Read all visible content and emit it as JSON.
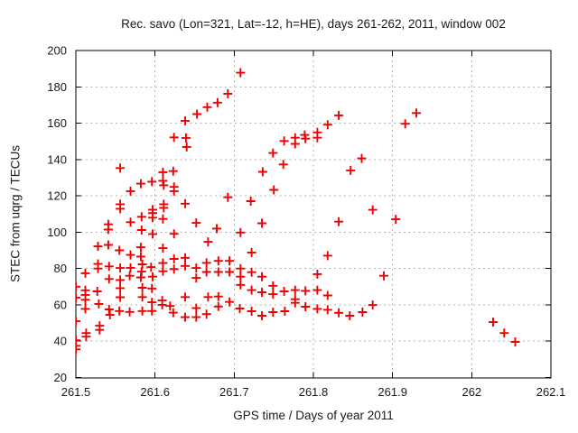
{
  "page": {
    "background": "#ffffff"
  },
  "chart_data": {
    "type": "scatter",
    "title": "Rec. savo (Lon=321, Lat=-12, h=HE), days 261-262, 2011, window 002",
    "xlabel": "GPS time / Days of year 2011",
    "ylabel": "STEC from uqrg / TECUs",
    "xlim": [
      261.5,
      262.1
    ],
    "ylim": [
      20,
      200
    ],
    "xticks": {
      "values": [
        261.5,
        261.6,
        261.7,
        261.8,
        261.9,
        262.0,
        262.1
      ],
      "labels": [
        "261.5",
        "261.6",
        "261.7",
        "261.8",
        "261.9",
        "262",
        "262.1"
      ]
    },
    "yticks": {
      "values": [
        20,
        40,
        60,
        80,
        100,
        120,
        140,
        160,
        180,
        200
      ],
      "labels": [
        "20",
        "40",
        "60",
        "80",
        "100",
        "120",
        "140",
        "160",
        "180",
        "200"
      ]
    },
    "grid": true,
    "legend_position": "none",
    "marker": {
      "shape": "plus",
      "color": "#ee0000",
      "size": 11
    },
    "axis_color": "#000000",
    "grid_color": "#b3b3b3",
    "series": [
      {
        "name": "STEC",
        "points": [
          [
            261.5,
            70.0
          ],
          [
            261.5,
            64.0
          ],
          [
            261.5,
            51.0
          ],
          [
            261.5,
            40.5
          ],
          [
            261.5,
            37.5
          ],
          [
            261.5,
            35.5
          ],
          [
            261.512,
            77.4
          ],
          [
            261.512,
            68.0
          ],
          [
            261.512,
            65.5
          ],
          [
            261.512,
            62.8
          ],
          [
            261.512,
            57.8
          ],
          [
            261.513,
            44.5
          ],
          [
            261.513,
            42.5
          ],
          [
            261.528,
            92.2
          ],
          [
            261.528,
            82.5
          ],
          [
            261.528,
            80.0
          ],
          [
            261.527,
            67.4
          ],
          [
            261.529,
            60.5
          ],
          [
            261.53,
            48.5
          ],
          [
            261.53,
            46.2
          ],
          [
            261.541,
            104.3
          ],
          [
            261.541,
            101.5
          ],
          [
            261.541,
            93.0
          ],
          [
            261.542,
            81.2
          ],
          [
            261.542,
            74.2
          ],
          [
            261.542,
            57.5
          ],
          [
            261.543,
            54.5
          ],
          [
            261.556,
            135.3
          ],
          [
            261.556,
            115.4
          ],
          [
            261.556,
            112.9
          ],
          [
            261.555,
            90.0
          ],
          [
            261.556,
            80.3
          ],
          [
            261.556,
            73.7
          ],
          [
            261.556,
            69.2
          ],
          [
            261.556,
            64.2
          ],
          [
            261.555,
            56.6
          ],
          [
            261.569,
            122.6
          ],
          [
            261.569,
            105.5
          ],
          [
            261.569,
            87.5
          ],
          [
            261.569,
            80.4
          ],
          [
            261.568,
            76.0
          ],
          [
            261.568,
            56.1
          ],
          [
            261.582,
            126.7
          ],
          [
            261.583,
            108.5
          ],
          [
            261.583,
            101.2
          ],
          [
            261.582,
            91.7
          ],
          [
            261.582,
            86.6
          ],
          [
            261.584,
            82.3
          ],
          [
            261.583,
            78.3
          ],
          [
            261.582,
            75.1
          ],
          [
            261.584,
            69.4
          ],
          [
            261.584,
            64.3
          ],
          [
            261.584,
            56.6
          ],
          [
            261.596,
            127.8
          ],
          [
            261.597,
            112.4
          ],
          [
            261.597,
            110.5
          ],
          [
            261.597,
            108.0
          ],
          [
            261.597,
            99.0
          ],
          [
            261.595,
            80.8
          ],
          [
            261.597,
            75.5
          ],
          [
            261.596,
            69.0
          ],
          [
            261.596,
            61.4
          ],
          [
            261.596,
            56.6
          ],
          [
            261.61,
            133.0
          ],
          [
            261.61,
            128.3
          ],
          [
            261.611,
            125.8
          ],
          [
            261.611,
            115.4
          ],
          [
            261.611,
            113.4
          ],
          [
            261.61,
            107.3
          ],
          [
            261.61,
            91.2
          ],
          [
            261.61,
            83.0
          ],
          [
            261.61,
            78.5
          ],
          [
            261.609,
            62.4
          ],
          [
            261.609,
            60.0
          ],
          [
            261.619,
            59.4
          ],
          [
            261.624,
            152.2
          ],
          [
            261.623,
            133.6
          ],
          [
            261.624,
            124.9
          ],
          [
            261.624,
            122.6
          ],
          [
            261.624,
            99.1
          ],
          [
            261.624,
            85.3
          ],
          [
            261.624,
            79.7
          ],
          [
            261.623,
            55.7
          ],
          [
            261.638,
            161.3
          ],
          [
            261.639,
            151.9
          ],
          [
            261.64,
            146.9
          ],
          [
            261.638,
            115.7
          ],
          [
            261.638,
            85.9
          ],
          [
            261.638,
            81.4
          ],
          [
            261.638,
            64.3
          ],
          [
            261.638,
            53.2
          ],
          [
            261.653,
            165.0
          ],
          [
            261.652,
            105.1
          ],
          [
            261.652,
            80.3
          ],
          [
            261.652,
            74.8
          ],
          [
            261.652,
            58.2
          ],
          [
            261.652,
            53.2
          ],
          [
            261.666,
            168.8
          ],
          [
            261.667,
            94.7
          ],
          [
            261.665,
            83.1
          ],
          [
            261.665,
            78.1
          ],
          [
            261.667,
            64.3
          ],
          [
            261.665,
            54.9
          ],
          [
            261.679,
            171.3
          ],
          [
            261.678,
            102.0
          ],
          [
            261.68,
            84.2
          ],
          [
            261.68,
            78.1
          ],
          [
            261.68,
            64.6
          ],
          [
            261.68,
            59.1
          ],
          [
            261.692,
            176.2
          ],
          [
            261.692,
            119.2
          ],
          [
            261.694,
            84.2
          ],
          [
            261.694,
            78.1
          ],
          [
            261.694,
            61.6
          ],
          [
            261.708,
            187.8
          ],
          [
            261.708,
            99.8
          ],
          [
            261.708,
            80.0
          ],
          [
            261.708,
            75.5
          ],
          [
            261.708,
            71.0
          ],
          [
            261.707,
            58.0
          ],
          [
            261.721,
            117.1
          ],
          [
            261.722,
            88.8
          ],
          [
            261.722,
            78.0
          ],
          [
            261.722,
            68.1
          ],
          [
            261.722,
            56.5
          ],
          [
            261.736,
            133.2
          ],
          [
            261.735,
            104.9
          ],
          [
            261.735,
            75.5
          ],
          [
            261.735,
            66.9
          ],
          [
            261.735,
            54.0
          ],
          [
            261.749,
            143.6
          ],
          [
            261.75,
            123.3
          ],
          [
            261.749,
            70.5
          ],
          [
            261.749,
            65.9
          ],
          [
            261.749,
            56.0
          ],
          [
            261.763,
            150.2
          ],
          [
            261.762,
            137.3
          ],
          [
            261.763,
            67.4
          ],
          [
            261.764,
            56.5
          ],
          [
            261.777,
            152.0
          ],
          [
            261.777,
            148.6
          ],
          [
            261.777,
            68.1
          ],
          [
            261.777,
            63.1
          ],
          [
            261.777,
            61.1
          ],
          [
            261.789,
            153.5
          ],
          [
            261.79,
            151.5
          ],
          [
            261.79,
            67.7
          ],
          [
            261.79,
            59.0
          ],
          [
            261.805,
            154.9
          ],
          [
            261.805,
            152.0
          ],
          [
            261.805,
            76.9
          ],
          [
            261.805,
            68.1
          ],
          [
            261.805,
            57.8
          ],
          [
            261.818,
            159.2
          ],
          [
            261.818,
            87.1
          ],
          [
            261.818,
            65.2
          ],
          [
            261.818,
            57.3
          ],
          [
            261.832,
            164.3
          ],
          [
            261.832,
            105.8
          ],
          [
            261.832,
            55.6
          ],
          [
            261.847,
            134.0
          ],
          [
            261.846,
            54.0
          ],
          [
            261.861,
            140.6
          ],
          [
            261.862,
            56.0
          ],
          [
            261.875,
            112.3
          ],
          [
            261.875,
            59.9
          ],
          [
            261.889,
            76.0
          ],
          [
            261.904,
            107.1
          ],
          [
            261.916,
            159.7
          ],
          [
            261.93,
            165.6
          ],
          [
            262.027,
            50.5
          ],
          [
            262.041,
            44.5
          ],
          [
            262.055,
            39.6
          ]
        ]
      }
    ]
  }
}
